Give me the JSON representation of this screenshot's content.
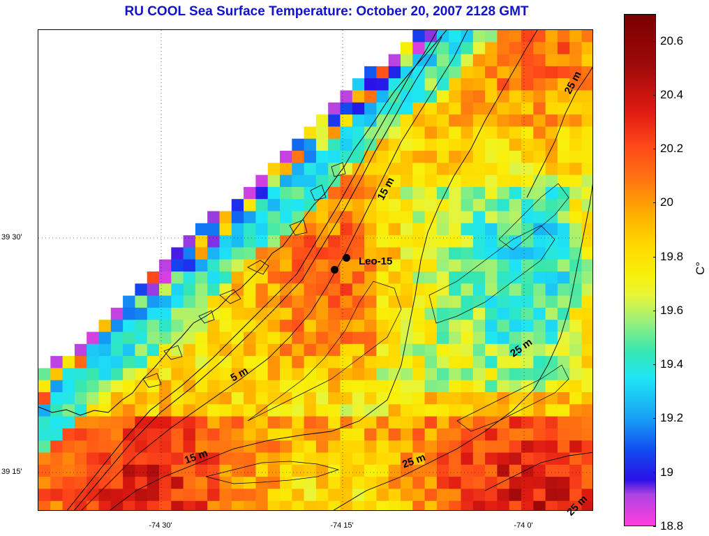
{
  "title": "RU COOL  Sea Surface Temperature:  October 20, 2007 2128 GMT",
  "lon_labels": [
    "-74 30'",
    "-74 15'",
    "-74 0'"
  ],
  "lat_labels": [
    "39 30'",
    "39 15'"
  ],
  "colorbar": {
    "ticks": [
      "20.6",
      "20.4",
      "20.2",
      "20",
      "19.8",
      "19.6",
      "19.4",
      "19.2",
      "19",
      "18.8"
    ],
    "unit": "C°",
    "min": 18.8,
    "max": 20.7
  },
  "contour_labels": [
    "25 m",
    "15 m",
    "5 m",
    "15 m",
    "25 m",
    "25 m",
    "25 m"
  ],
  "station": {
    "label": "Leo-15"
  }
}
